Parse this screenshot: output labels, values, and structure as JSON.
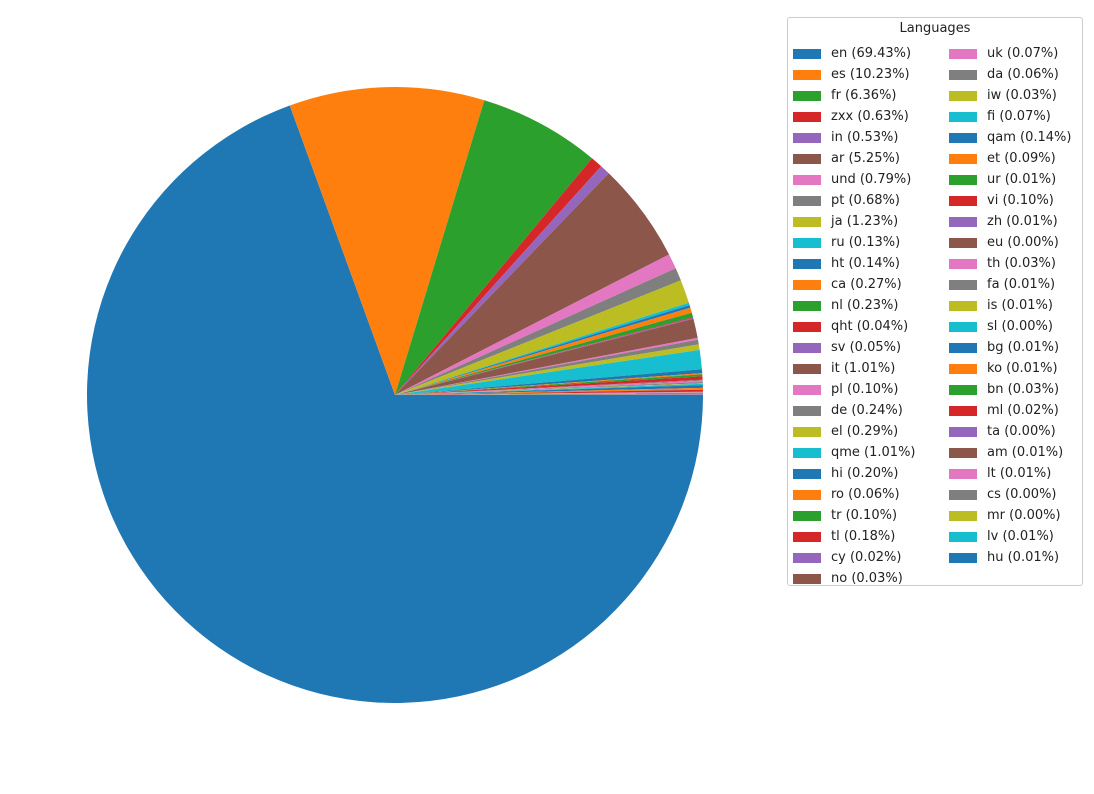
{
  "chart_data": {
    "type": "pie",
    "title": "",
    "legend_title": "Languages",
    "legend_placement": "right",
    "palette": [
      "#1f77b4",
      "#ff7f0e",
      "#2ca02c",
      "#d62728",
      "#9467bd",
      "#8c564b",
      "#e377c2",
      "#7f7f7f",
      "#bcbd22",
      "#17becf"
    ],
    "slices": [
      {
        "label": "en (69.43%)",
        "code": "en",
        "percent": 69.43
      },
      {
        "label": "es (10.23%)",
        "code": "es",
        "percent": 10.23
      },
      {
        "label": "fr (6.36%)",
        "code": "fr",
        "percent": 6.36
      },
      {
        "label": "zxx (0.63%)",
        "code": "zxx",
        "percent": 0.63
      },
      {
        "label": "in (0.53%)",
        "code": "in",
        "percent": 0.53
      },
      {
        "label": "ar (5.25%)",
        "code": "ar",
        "percent": 5.25
      },
      {
        "label": "und (0.79%)",
        "code": "und",
        "percent": 0.79
      },
      {
        "label": "pt (0.68%)",
        "code": "pt",
        "percent": 0.68
      },
      {
        "label": "ja (1.23%)",
        "code": "ja",
        "percent": 1.23
      },
      {
        "label": "ru (0.13%)",
        "code": "ru",
        "percent": 0.13
      },
      {
        "label": "ht (0.14%)",
        "code": "ht",
        "percent": 0.14
      },
      {
        "label": "ca (0.27%)",
        "code": "ca",
        "percent": 0.27
      },
      {
        "label": "nl (0.23%)",
        "code": "nl",
        "percent": 0.23
      },
      {
        "label": "qht (0.04%)",
        "code": "qht",
        "percent": 0.04
      },
      {
        "label": "sv (0.05%)",
        "code": "sv",
        "percent": 0.05
      },
      {
        "label": "it (1.01%)",
        "code": "it",
        "percent": 1.01
      },
      {
        "label": "pl (0.10%)",
        "code": "pl",
        "percent": 0.1
      },
      {
        "label": "de (0.24%)",
        "code": "de",
        "percent": 0.24
      },
      {
        "label": "el (0.29%)",
        "code": "el",
        "percent": 0.29
      },
      {
        "label": "qme (1.01%)",
        "code": "qme",
        "percent": 1.01
      },
      {
        "label": "hi (0.20%)",
        "code": "hi",
        "percent": 0.2
      },
      {
        "label": "ro (0.06%)",
        "code": "ro",
        "percent": 0.06
      },
      {
        "label": "tr (0.10%)",
        "code": "tr",
        "percent": 0.1
      },
      {
        "label": "tl (0.18%)",
        "code": "tl",
        "percent": 0.18
      },
      {
        "label": "cy (0.02%)",
        "code": "cy",
        "percent": 0.02
      },
      {
        "label": "no (0.03%)",
        "code": "no",
        "percent": 0.03
      },
      {
        "label": "uk (0.07%)",
        "code": "uk",
        "percent": 0.07
      },
      {
        "label": "da (0.06%)",
        "code": "da",
        "percent": 0.06
      },
      {
        "label": "iw (0.03%)",
        "code": "iw",
        "percent": 0.03
      },
      {
        "label": "fi (0.07%)",
        "code": "fi",
        "percent": 0.07
      },
      {
        "label": "qam (0.14%)",
        "code": "qam",
        "percent": 0.14
      },
      {
        "label": "et (0.09%)",
        "code": "et",
        "percent": 0.09
      },
      {
        "label": "ur (0.01%)",
        "code": "ur",
        "percent": 0.01
      },
      {
        "label": "vi (0.10%)",
        "code": "vi",
        "percent": 0.1
      },
      {
        "label": "zh (0.01%)",
        "code": "zh",
        "percent": 0.01
      },
      {
        "label": "eu (0.00%)",
        "code": "eu",
        "percent": 0.0
      },
      {
        "label": "th (0.03%)",
        "code": "th",
        "percent": 0.03
      },
      {
        "label": "fa (0.01%)",
        "code": "fa",
        "percent": 0.01
      },
      {
        "label": "is (0.01%)",
        "code": "is",
        "percent": 0.01
      },
      {
        "label": "sl (0.00%)",
        "code": "sl",
        "percent": 0.0
      },
      {
        "label": "bg (0.01%)",
        "code": "bg",
        "percent": 0.01
      },
      {
        "label": "ko (0.01%)",
        "code": "ko",
        "percent": 0.01
      },
      {
        "label": "bn (0.03%)",
        "code": "bn",
        "percent": 0.03
      },
      {
        "label": "ml (0.02%)",
        "code": "ml",
        "percent": 0.02
      },
      {
        "label": "ta (0.00%)",
        "code": "ta",
        "percent": 0.0
      },
      {
        "label": "am (0.01%)",
        "code": "am",
        "percent": 0.01
      },
      {
        "label": "lt (0.01%)",
        "code": "lt",
        "percent": 0.01
      },
      {
        "label": "cs (0.00%)",
        "code": "cs",
        "percent": 0.0
      },
      {
        "label": "mr (0.00%)",
        "code": "mr",
        "percent": 0.0
      },
      {
        "label": "lv (0.01%)",
        "code": "lv",
        "percent": 0.01
      },
      {
        "label": "hu (0.01%)",
        "code": "hu",
        "percent": 0.01
      }
    ]
  }
}
